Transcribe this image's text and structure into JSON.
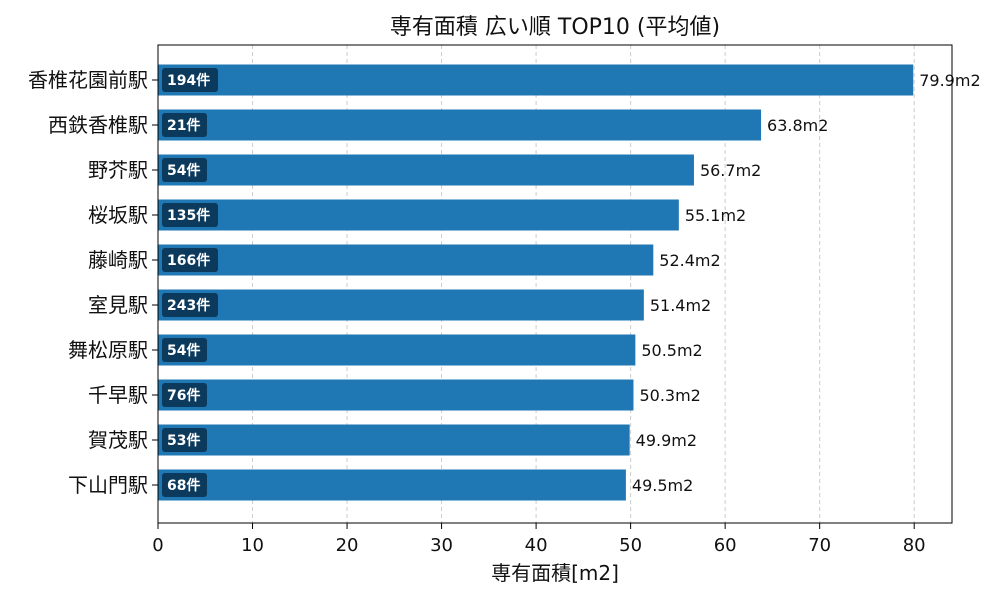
{
  "chart_data": {
    "type": "bar",
    "orientation": "horizontal",
    "title": "専有面積 広い順 TOP10 (平均値)",
    "xlabel": "専有面積[m2]",
    "ylabel": "",
    "xlim": [
      0,
      84
    ],
    "xticks": [
      0,
      10,
      20,
      30,
      40,
      50,
      60,
      70,
      80
    ],
    "grid": "x-dashed",
    "bar_color": "#1f77b4",
    "badge_color": "#0b3a5c",
    "categories": [
      "香椎花園前駅",
      "西鉄香椎駅",
      "野芥駅",
      "桜坂駅",
      "藤崎駅",
      "室見駅",
      "舞松原駅",
      "千早駅",
      "賀茂駅",
      "下山門駅"
    ],
    "values": [
      79.9,
      63.8,
      56.7,
      55.1,
      52.4,
      51.4,
      50.5,
      50.3,
      49.9,
      49.5
    ],
    "value_labels": [
      "79.9m2",
      "63.8m2",
      "56.7m2",
      "55.1m2",
      "52.4m2",
      "51.4m2",
      "50.5m2",
      "50.3m2",
      "49.9m2",
      "49.5m2"
    ],
    "counts": [
      "194件",
      "21件",
      "54件",
      "135件",
      "166件",
      "243件",
      "54件",
      "76件",
      "53件",
      "68件"
    ]
  }
}
